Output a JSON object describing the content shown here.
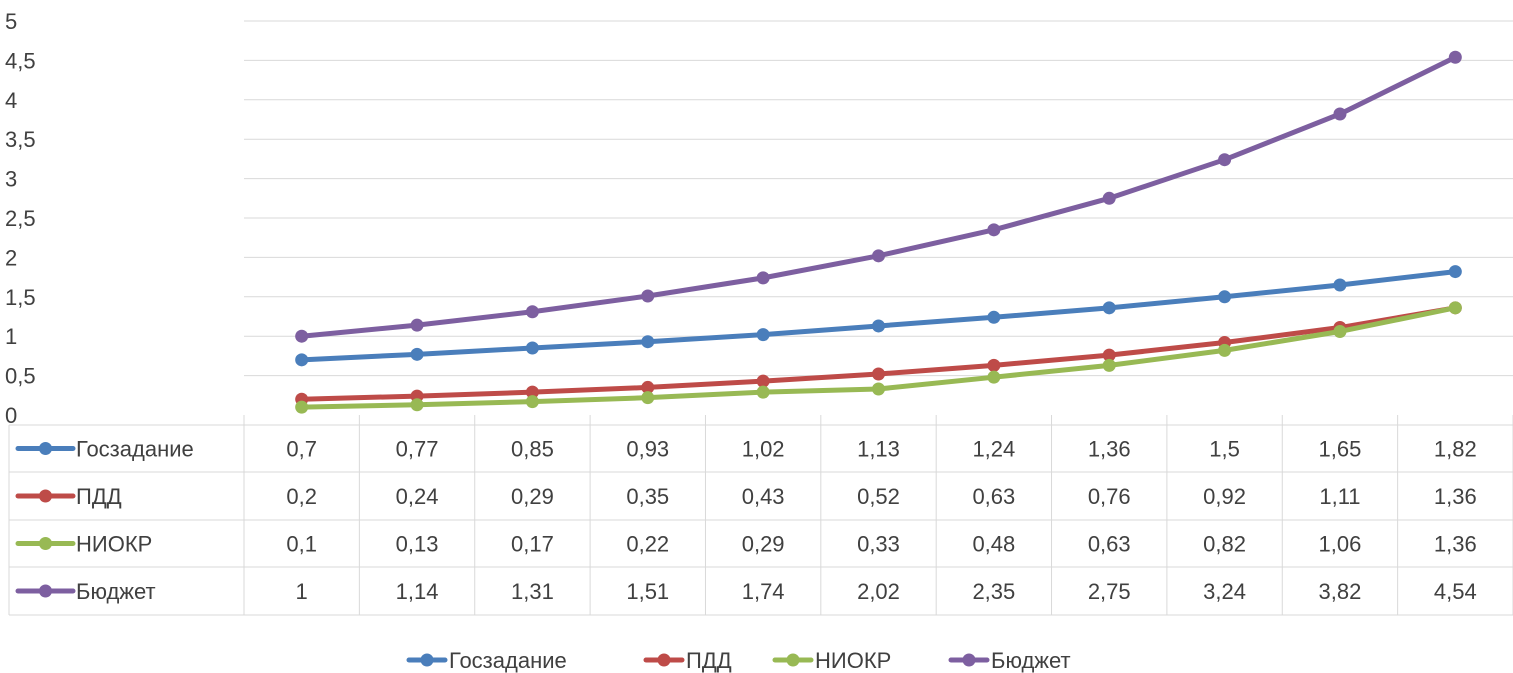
{
  "chart_data": {
    "type": "line",
    "categories": [
      "",
      "",
      "",
      "",
      "",
      "",
      "",
      "",
      "",
      "",
      ""
    ],
    "ylim": [
      0,
      5
    ],
    "ytick_step": 0.5,
    "ytick_labels": [
      "0",
      "0,5",
      "1",
      "1,5",
      "2",
      "2,5",
      "3",
      "3,5",
      "4",
      "4,5",
      "5"
    ],
    "grid": true,
    "legend_position": "bottom",
    "data_table": true,
    "series": [
      {
        "name": "Госзадание",
        "color": "#4a7ebb",
        "values": [
          0.7,
          0.77,
          0.85,
          0.93,
          1.02,
          1.13,
          1.24,
          1.36,
          1.5,
          1.65,
          1.82
        ],
        "labels": [
          "0,7",
          "0,77",
          "0,85",
          "0,93",
          "1,02",
          "1,13",
          "1,24",
          "1,36",
          "1,5",
          "1,65",
          "1,82"
        ]
      },
      {
        "name": "ПДД",
        "color": "#be4b48",
        "values": [
          0.2,
          0.24,
          0.29,
          0.35,
          0.43,
          0.52,
          0.63,
          0.76,
          0.92,
          1.11,
          1.36
        ],
        "labels": [
          "0,2",
          "0,24",
          "0,29",
          "0,35",
          "0,43",
          "0,52",
          "0,63",
          "0,76",
          "0,92",
          "1,11",
          "1,36"
        ]
      },
      {
        "name": "НИОКР",
        "color": "#98b954",
        "values": [
          0.1,
          0.13,
          0.17,
          0.22,
          0.29,
          0.33,
          0.48,
          0.63,
          0.82,
          1.06,
          1.36
        ],
        "labels": [
          "0,1",
          "0,13",
          "0,17",
          "0,22",
          "0,29",
          "0,33",
          "0,48",
          "0,63",
          "0,82",
          "1,06",
          "1,36"
        ]
      },
      {
        "name": "Бюджет",
        "color": "#7d5fa0",
        "values": [
          1,
          1.14,
          1.31,
          1.51,
          1.74,
          2.02,
          2.35,
          2.75,
          3.24,
          3.82,
          4.54
        ],
        "labels": [
          "1",
          "1,14",
          "1,31",
          "1,51",
          "1,74",
          "2,02",
          "2,35",
          "2,75",
          "3,24",
          "3,82",
          "4,54"
        ]
      }
    ]
  }
}
